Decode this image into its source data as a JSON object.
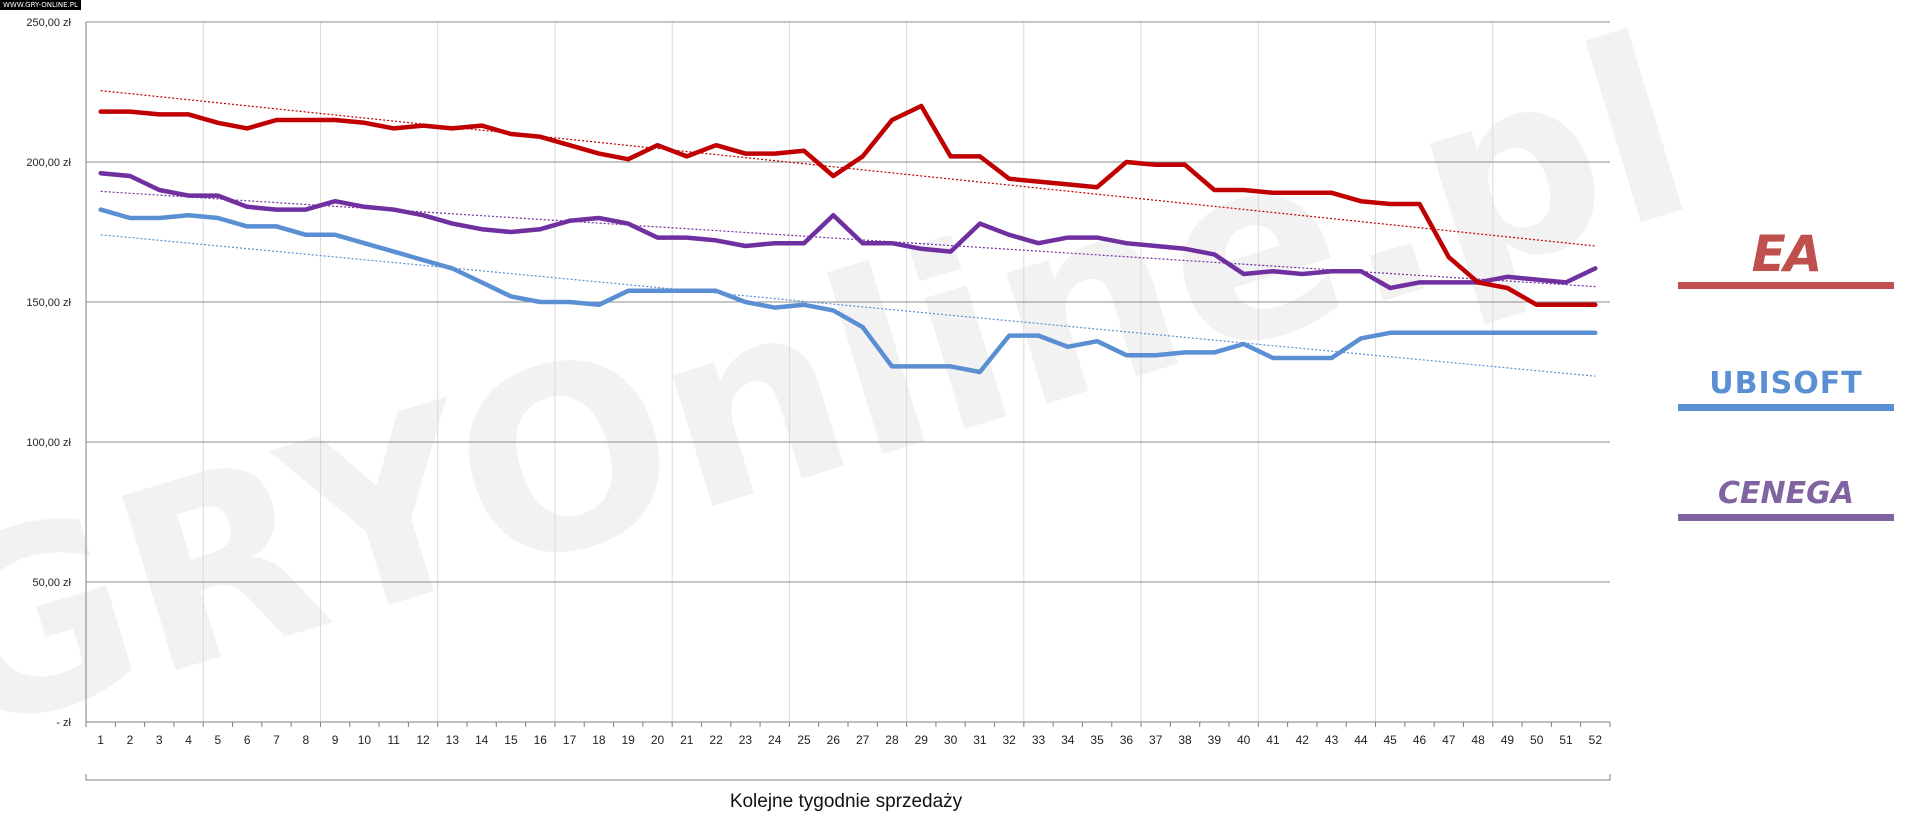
{
  "source_label": "WWW.GRY-ONLINE.PL",
  "watermark": "GRYOnline.pl",
  "chart_data": {
    "type": "line",
    "title": "",
    "xlabel": "Kolejne tygodnie sprzedaży",
    "ylabel": "",
    "x": [
      1,
      2,
      3,
      4,
      5,
      6,
      7,
      8,
      9,
      10,
      11,
      12,
      13,
      14,
      15,
      16,
      17,
      18,
      19,
      20,
      21,
      22,
      23,
      24,
      25,
      26,
      27,
      28,
      29,
      30,
      31,
      32,
      33,
      34,
      35,
      36,
      37,
      38,
      39,
      40,
      41,
      42,
      43,
      44,
      45,
      46,
      47,
      48,
      49,
      50,
      51,
      52
    ],
    "ylim": [
      0,
      250
    ],
    "yticks": [
      {
        "value": 250,
        "label": "250,00 zł"
      },
      {
        "value": 200,
        "label": "200,00 zł"
      },
      {
        "value": 150,
        "label": "150,00 zł"
      },
      {
        "value": 100,
        "label": "100,00 zł"
      },
      {
        "value": 50,
        "label": "50,00 zł"
      },
      {
        "value": 0,
        "label": "-   zł"
      }
    ],
    "grid": true,
    "legend_position": "right",
    "series": [
      {
        "name": "EA",
        "color": "#c00000",
        "values": [
          218,
          218,
          217,
          217,
          214,
          212,
          215,
          215,
          215,
          214,
          212,
          213,
          212,
          213,
          210,
          209,
          206,
          203,
          201,
          206,
          202,
          206,
          203,
          203,
          204,
          195,
          202,
          215,
          220,
          202,
          202,
          194,
          193,
          192,
          191,
          200,
          199,
          199,
          190,
          190,
          189,
          189,
          189,
          186,
          185,
          185,
          166,
          157,
          155,
          149,
          149,
          149
        ],
        "trend": [
          225.5,
          170
        ]
      },
      {
        "name": "CENEGA",
        "color": "#7030a0",
        "values": [
          196,
          195,
          190,
          188,
          188,
          184,
          183,
          183,
          186,
          184,
          183,
          181,
          178,
          176,
          175,
          176,
          179,
          180,
          178,
          173,
          173,
          172,
          170,
          171,
          171,
          181,
          171,
          171,
          169,
          168,
          178,
          174,
          171,
          173,
          173,
          171,
          170,
          169,
          167,
          160,
          161,
          160,
          161,
          161,
          155,
          157,
          157,
          157,
          159,
          158,
          157,
          162
        ],
        "trend": [
          189.5,
          155.5
        ]
      },
      {
        "name": "UBISOFT",
        "color": "#5b8fd4",
        "values": [
          183,
          180,
          180,
          181,
          180,
          177,
          177,
          174,
          174,
          171,
          168,
          165,
          162,
          157,
          152,
          150,
          150,
          149,
          154,
          154,
          154,
          154,
          150,
          148,
          149,
          147,
          141,
          127,
          127,
          127,
          125,
          138,
          138,
          134,
          136,
          131,
          131,
          132,
          132,
          135,
          130,
          130,
          130,
          137,
          139,
          139,
          139,
          139,
          139,
          139,
          139,
          139
        ],
        "trend": [
          174,
          123.5
        ]
      }
    ]
  },
  "legend": [
    {
      "name": "EA",
      "text": "EA",
      "color": "#c0504d"
    },
    {
      "name": "UBISOFT",
      "text": "UBISOFT",
      "color": "#5b8fd4"
    },
    {
      "name": "CENEGA",
      "text": "CENEGA",
      "color": "#8064a2"
    }
  ]
}
